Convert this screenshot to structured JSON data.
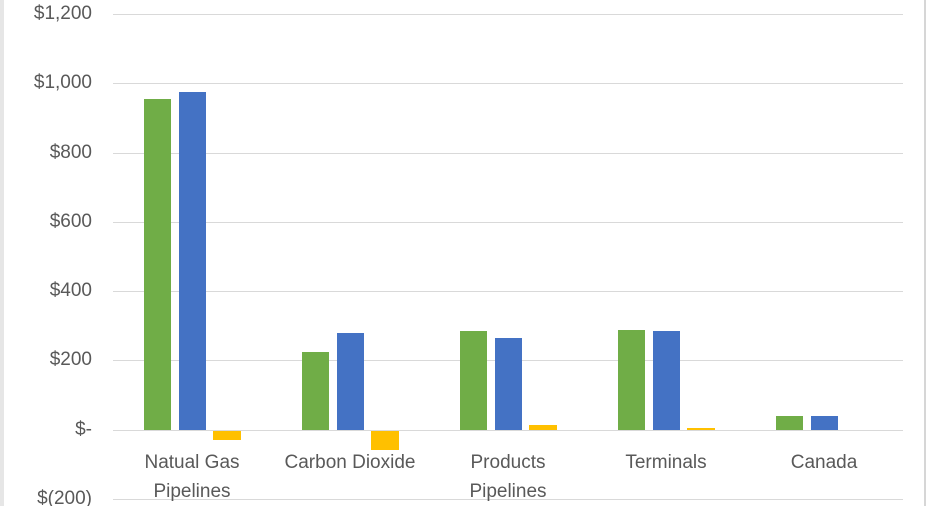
{
  "chart_data": {
    "type": "bar",
    "title": "",
    "legend": "none",
    "grid": true,
    "categories": [
      "Natual Gas Pipelines",
      "Carbon Dioxide",
      "Products Pipelines",
      "Terminals",
      "Canada"
    ],
    "category_label_lines": [
      [
        "Natual Gas",
        "Pipelines"
      ],
      [
        "Carbon Dioxide"
      ],
      [
        "Products",
        "Pipelines"
      ],
      [
        "Terminals"
      ],
      [
        "Canada"
      ]
    ],
    "series": [
      {
        "id": "green-series",
        "color": "#70AD47",
        "values": [
          955,
          225,
          285,
          290,
          40
        ]
      },
      {
        "id": "blue-series",
        "color": "#4472C4",
        "values": [
          975,
          280,
          265,
          285,
          40
        ]
      },
      {
        "id": "yellow-series",
        "color": "#FFC000",
        "values": [
          -25,
          -55,
          15,
          5,
          0
        ]
      }
    ],
    "y_axis": {
      "min": -200,
      "max": 1200,
      "tick_step": 200,
      "ticks": [
        {
          "value": 1200,
          "label": "$1,200"
        },
        {
          "value": 1000,
          "label": "$1,000"
        },
        {
          "value": 800,
          "label": "$800"
        },
        {
          "value": 600,
          "label": "$600"
        },
        {
          "value": 400,
          "label": "$400"
        },
        {
          "value": 200,
          "label": "$200"
        },
        {
          "value": 0,
          "label": "$-"
        },
        {
          "value": -200,
          "label": "$(200)"
        }
      ]
    },
    "colors": {
      "gridline": "#D9D9D9",
      "axis_text": "#595959",
      "background": "#FFFFFF"
    }
  }
}
